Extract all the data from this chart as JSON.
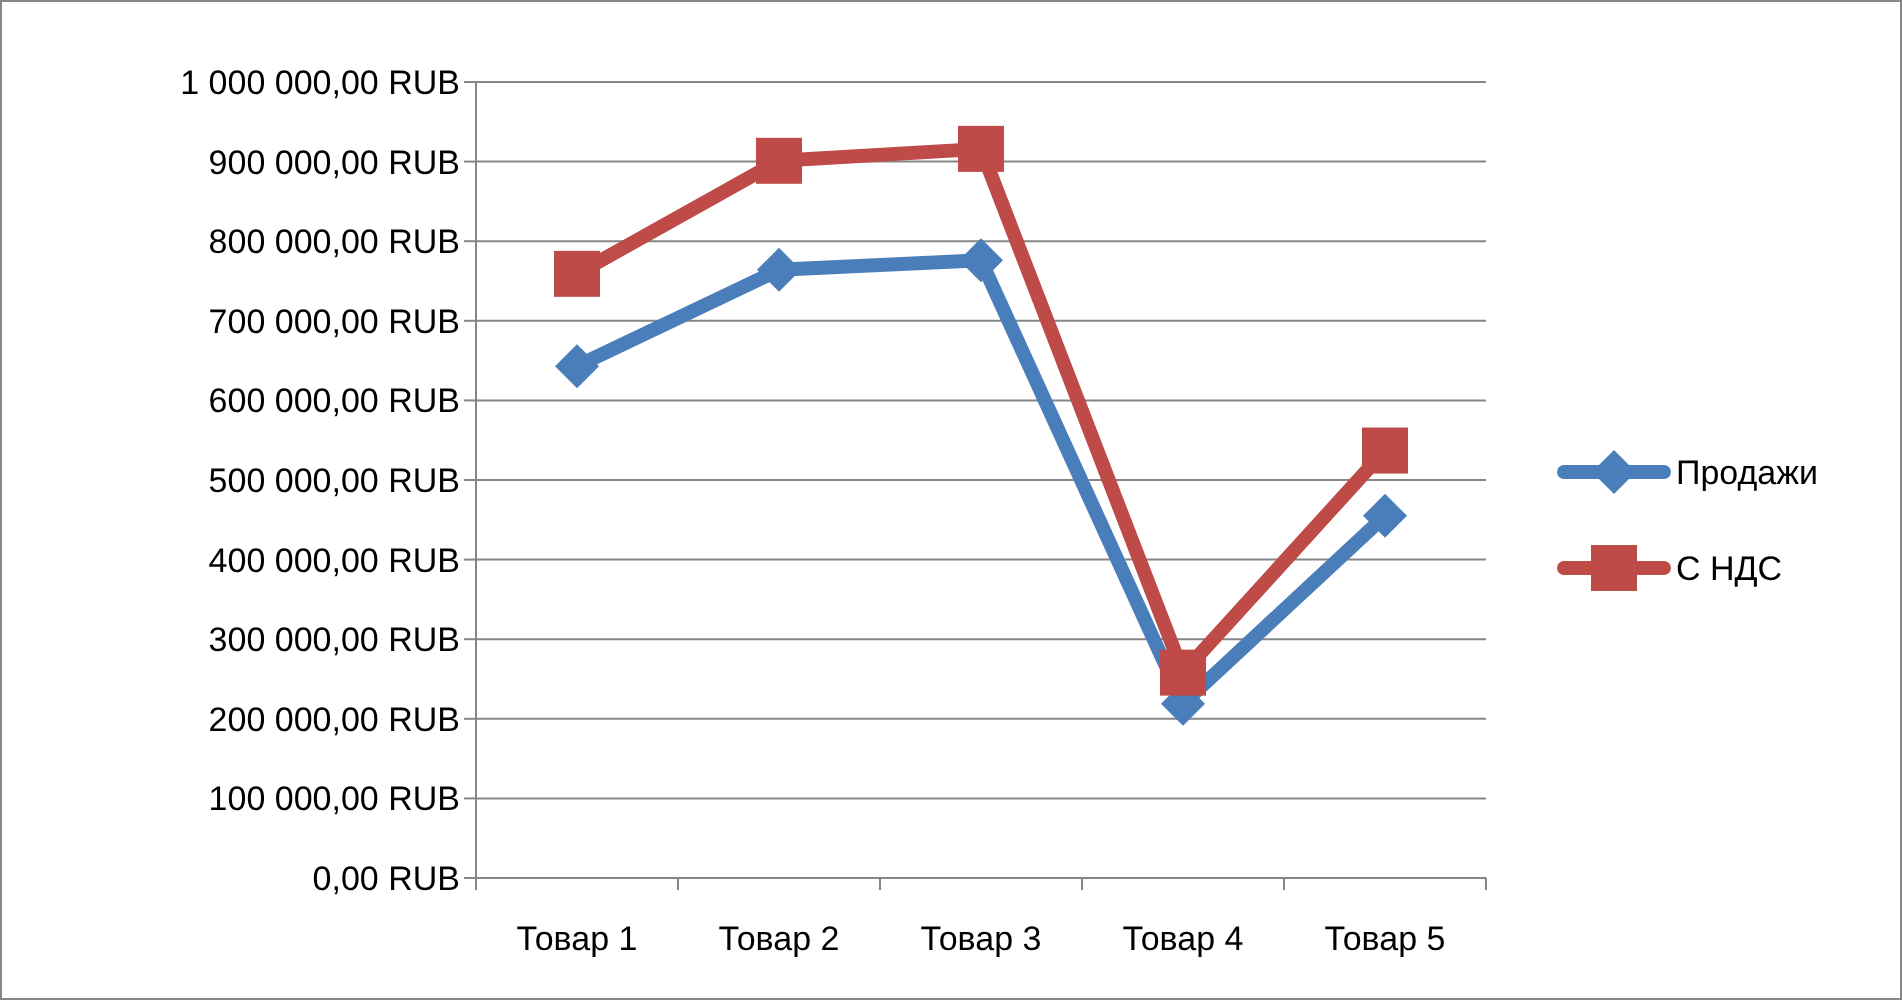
{
  "chart_data": {
    "type": "line",
    "categories": [
      "Товар 1",
      "Товар 2",
      "Товар 3",
      "Товар 4",
      "Товар 5"
    ],
    "series": [
      {
        "name": "Продажи",
        "color": "#4a7ebb",
        "marker": "diamond",
        "values": [
          643000,
          764000,
          776000,
          219000,
          455000
        ]
      },
      {
        "name": "С НДС",
        "color": "#be4b48",
        "marker": "square",
        "values": [
          759000,
          901000,
          916000,
          258000,
          537000
        ]
      }
    ],
    "ylim": [
      0,
      1000000
    ],
    "yticks": [
      {
        "value": 0,
        "label": "0,00 RUB"
      },
      {
        "value": 100000,
        "label": "100 000,00 RUB"
      },
      {
        "value": 200000,
        "label": "200 000,00 RUB"
      },
      {
        "value": 300000,
        "label": "300 000,00 RUB"
      },
      {
        "value": 400000,
        "label": "400 000,00 RUB"
      },
      {
        "value": 500000,
        "label": "500 000,00 RUB"
      },
      {
        "value": 600000,
        "label": "600 000,00 RUB"
      },
      {
        "value": 700000,
        "label": "700 000,00 RUB"
      },
      {
        "value": 800000,
        "label": "800 000,00 RUB"
      },
      {
        "value": 900000,
        "label": "900 000,00 RUB"
      },
      {
        "value": 1000000,
        "label": "1 000 000,00 RUB"
      }
    ],
    "grid": "y",
    "legend": "right",
    "line_style": "solid"
  }
}
